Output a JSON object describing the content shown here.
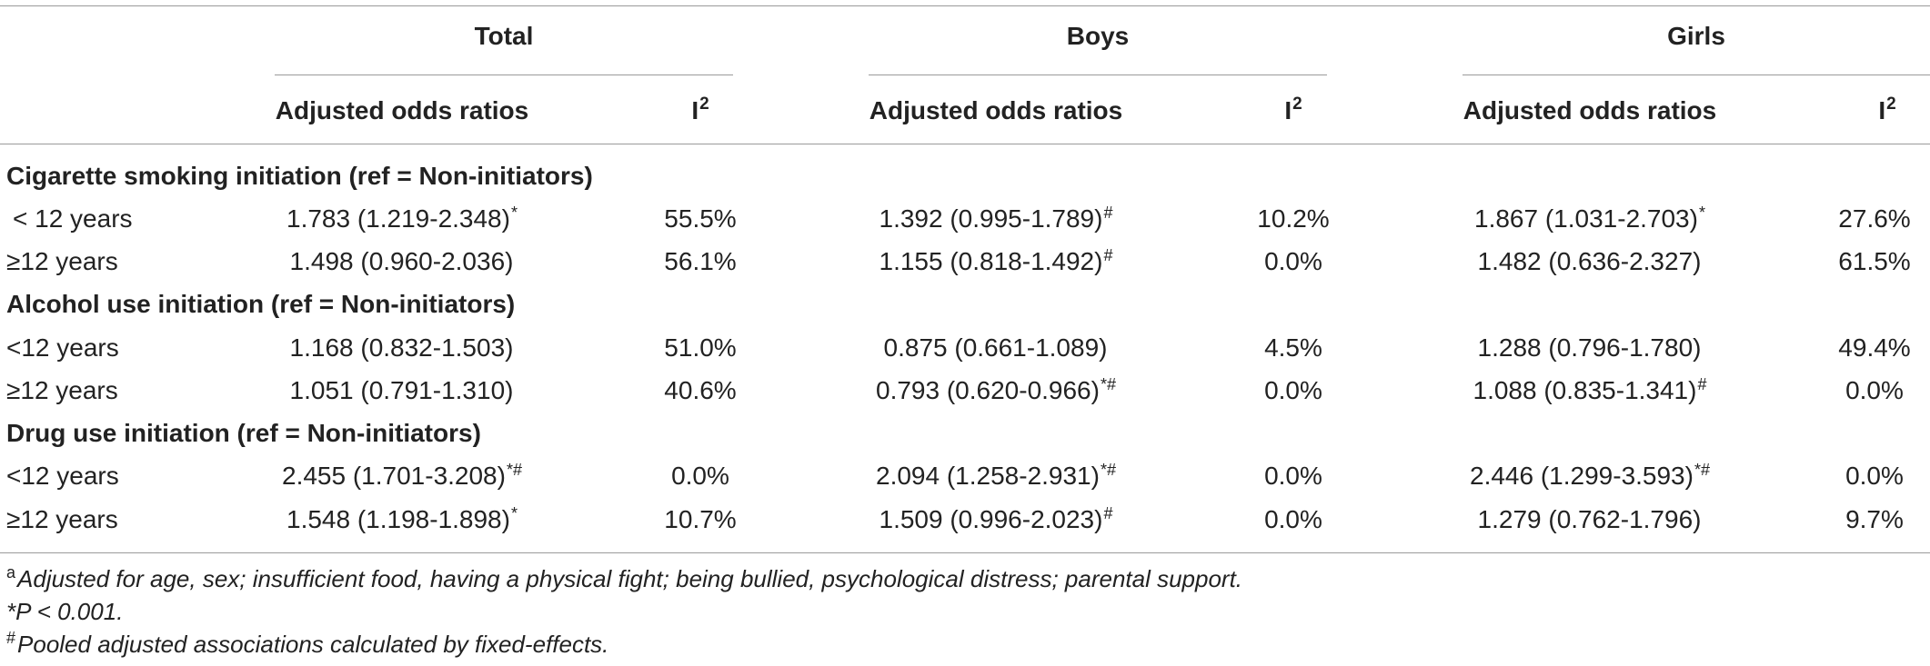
{
  "header": {
    "groups": [
      "Total",
      "Boys",
      "Girls"
    ],
    "or_label": "Adjusted odds ratios",
    "i2_label": "I",
    "i2_sup": "2"
  },
  "sections": [
    {
      "title": "Cigarette smoking initiation (ref = Non-initiators)",
      "rows": [
        {
          "label": "< 12 years",
          "total_or": "1.783 (1.219-2.348)",
          "total_mark": "*",
          "total_i2": "55.5%",
          "boys_or": "1.392 (0.995-1.789)",
          "boys_mark": "#",
          "boys_i2": "10.2%",
          "girls_or": "1.867 (1.031-2.703)",
          "girls_mark": "*",
          "girls_i2": "27.6%"
        },
        {
          "label": "≥12 years",
          "total_or": "1.498 (0.960-2.036)",
          "total_mark": "",
          "total_i2": "56.1%",
          "boys_or": "1.155 (0.818-1.492)",
          "boys_mark": "#",
          "boys_i2": "0.0%",
          "girls_or": "1.482 (0.636-2.327)",
          "girls_mark": "",
          "girls_i2": "61.5%"
        }
      ]
    },
    {
      "title": "Alcohol use initiation (ref = Non-initiators)",
      "rows": [
        {
          "label": "<12 years",
          "total_or": "1.168 (0.832-1.503)",
          "total_mark": "",
          "total_i2": "51.0%",
          "boys_or": "0.875 (0.661-1.089)",
          "boys_mark": "",
          "boys_i2": "4.5%",
          "girls_or": "1.288 (0.796-1.780)",
          "girls_mark": "",
          "girls_i2": "49.4%"
        },
        {
          "label": "≥12 years",
          "total_or": "1.051 (0.791-1.310)",
          "total_mark": "",
          "total_i2": "40.6%",
          "boys_or": "0.793 (0.620-0.966)",
          "boys_mark": "*#",
          "boys_i2": "0.0%",
          "girls_or": "1.088 (0.835-1.341)",
          "girls_mark": "#",
          "girls_i2": "0.0%"
        }
      ]
    },
    {
      "title": "Drug use initiation (ref = Non-initiators)",
      "rows": [
        {
          "label": "<12 years",
          "total_or": "2.455 (1.701-3.208)",
          "total_mark": "*#",
          "total_i2": "0.0%",
          "boys_or": "2.094 (1.258-2.931)",
          "boys_mark": "*#",
          "boys_i2": "0.0%",
          "girls_or": "2.446 (1.299-3.593)",
          "girls_mark": "*#",
          "girls_i2": "0.0%"
        },
        {
          "label": "≥12 years",
          "total_or": "1.548 (1.198-1.898)",
          "total_mark": "*",
          "total_i2": "10.7%",
          "boys_or": "1.509 (0.996-2.023)",
          "boys_mark": "#",
          "boys_i2": "0.0%",
          "girls_or": "1.279 (0.762-1.796)",
          "girls_mark": "",
          "girls_i2": "9.7%"
        }
      ]
    }
  ],
  "footnotes": [
    {
      "marker": "a",
      "text": "Adjusted for age, sex; insufficient food, having a physical fight; being bullied, psychological distress; parental support."
    },
    {
      "marker": "",
      "text": "*P < 0.001."
    },
    {
      "marker": "#",
      "text": "Pooled adjusted associations calculated by fixed-effects."
    }
  ]
}
